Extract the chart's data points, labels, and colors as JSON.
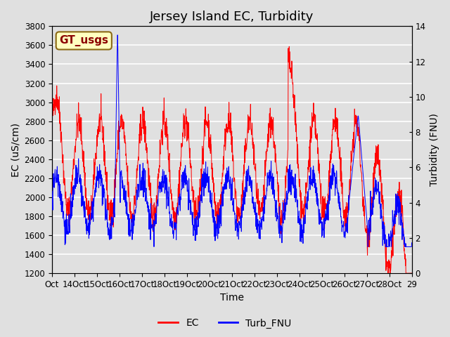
{
  "title": "Jersey Island EC, Turbidity",
  "xlabel": "Time",
  "ylabel_left": "EC (uS/cm)",
  "ylabel_right": "Turbidity (FNU)",
  "ylim_left": [
    1200,
    3800
  ],
  "ylim_right": [
    0,
    14
  ],
  "yticks_left": [
    1200,
    1400,
    1600,
    1800,
    2000,
    2200,
    2400,
    2600,
    2800,
    3000,
    3200,
    3400,
    3600,
    3800
  ],
  "yticks_right": [
    0,
    2,
    4,
    6,
    8,
    10,
    12,
    14
  ],
  "xtick_positions": [
    0,
    1,
    2,
    3,
    4,
    5,
    6,
    7,
    8,
    9,
    10,
    11,
    12,
    13,
    14,
    15,
    16
  ],
  "xtick_labels": [
    "Oct",
    "14Oct",
    "15Oct",
    "16Oct",
    "17Oct",
    "18Oct",
    "19Oct",
    "20Oct",
    "21Oct",
    "22Oct",
    "23Oct",
    "24Oct",
    "25Oct",
    "26Oct",
    "27Oct",
    "28Oct",
    "29"
  ],
  "ec_color": "#FF0000",
  "turb_color": "#0000FF",
  "background_color": "#E0E0E0",
  "legend_ec": "EC",
  "legend_turb": "Turb_FNU",
  "annotation_text": "GT_usgs",
  "annotation_color": "#8B0000",
  "annotation_bg": "#FFFFC0",
  "annotation_edge": "#8B6914",
  "title_fontsize": 13,
  "axis_fontsize": 10,
  "tick_fontsize": 8.5,
  "legend_fontsize": 10,
  "annotation_fontsize": 11
}
